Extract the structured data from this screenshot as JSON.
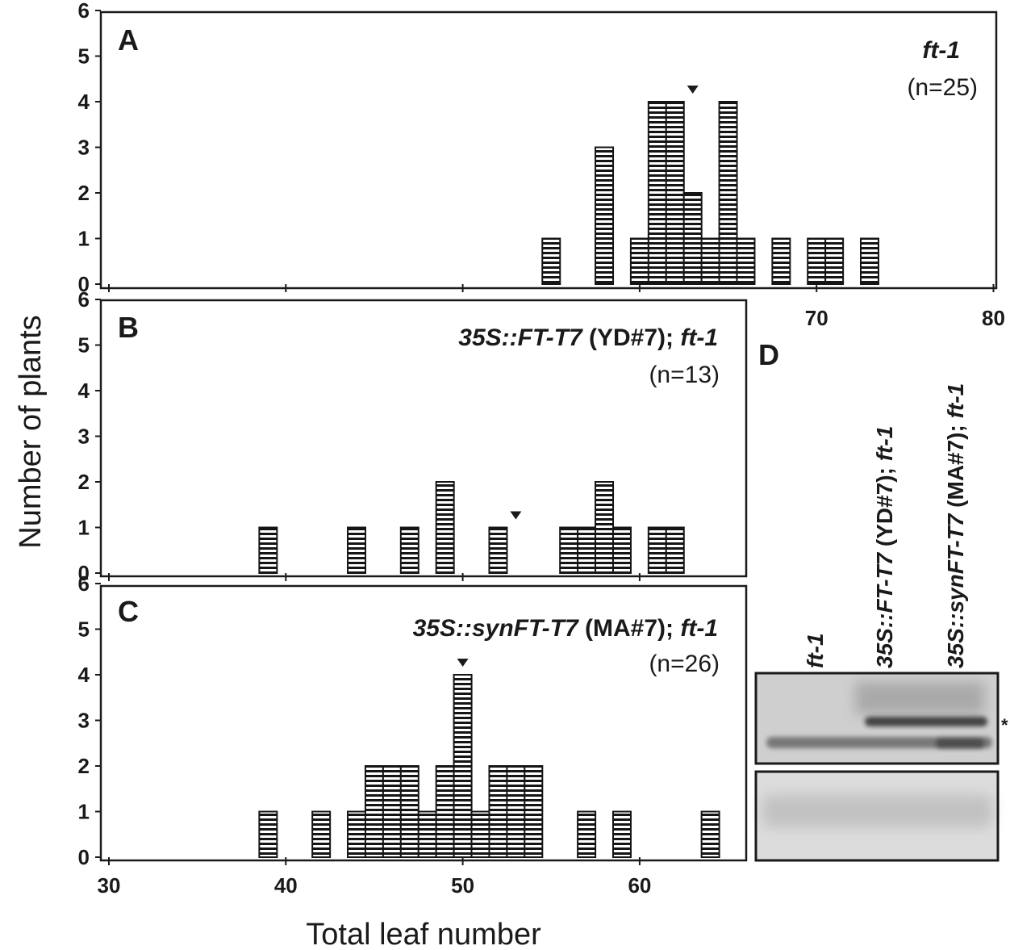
{
  "figure": {
    "ylabel": "Number of plants",
    "xlabel": "Total leaf number"
  },
  "chart_data": [
    {
      "panel": "A",
      "type": "bar",
      "label_bold": "ft-1",
      "label_normal": "",
      "label_tail": "",
      "n_label": "(n=25)",
      "xlim": [
        30,
        80
      ],
      "ylim": [
        0,
        6
      ],
      "x_ticks": [
        30,
        40,
        50,
        60,
        70,
        80
      ],
      "x_tick_labels_visible": [
        "70",
        "80"
      ],
      "y_ticks": [
        "0",
        "1",
        "2",
        "3",
        "4",
        "5",
        "6"
      ],
      "arrow_x": 63,
      "bins": [
        {
          "x": 55,
          "count": 1
        },
        {
          "x": 58,
          "count": 3
        },
        {
          "x": 60,
          "count": 1
        },
        {
          "x": 61,
          "count": 4
        },
        {
          "x": 62,
          "count": 4
        },
        {
          "x": 63,
          "count": 2
        },
        {
          "x": 64,
          "count": 1
        },
        {
          "x": 65,
          "count": 4
        },
        {
          "x": 66,
          "count": 1
        },
        {
          "x": 68,
          "count": 1
        },
        {
          "x": 70,
          "count": 1
        },
        {
          "x": 71,
          "count": 1
        },
        {
          "x": 73,
          "count": 1
        }
      ]
    },
    {
      "panel": "B",
      "type": "bar",
      "label_bold": "35S::FT-T7",
      "label_normal": " (YD#7); ",
      "label_tail": "ft-1",
      "n_label": "(n=13)",
      "xlim": [
        30,
        66
      ],
      "ylim": [
        0,
        6
      ],
      "x_ticks": [
        30,
        40,
        50,
        60
      ],
      "x_tick_labels_visible": [],
      "y_ticks": [
        "0",
        "1",
        "2",
        "3",
        "4",
        "5",
        "6"
      ],
      "arrow_x": 53,
      "bins": [
        {
          "x": 39,
          "count": 1
        },
        {
          "x": 44,
          "count": 1
        },
        {
          "x": 47,
          "count": 1
        },
        {
          "x": 49,
          "count": 2
        },
        {
          "x": 52,
          "count": 1
        },
        {
          "x": 56,
          "count": 1
        },
        {
          "x": 57,
          "count": 1
        },
        {
          "x": 58,
          "count": 2
        },
        {
          "x": 59,
          "count": 1
        },
        {
          "x": 61,
          "count": 1
        },
        {
          "x": 62,
          "count": 1
        }
      ]
    },
    {
      "panel": "C",
      "type": "bar",
      "label_bold": "35S::synFT-T7",
      "label_normal": " (MA#7); ",
      "label_tail": "ft-1",
      "n_label": "(n=26)",
      "xlim": [
        30,
        66
      ],
      "ylim": [
        0,
        6
      ],
      "x_ticks": [
        30,
        40,
        50,
        60
      ],
      "x_tick_labels_visible": [
        "30",
        "40",
        "50",
        "60"
      ],
      "y_ticks": [
        "0",
        "1",
        "2",
        "3",
        "4",
        "5",
        "6"
      ],
      "arrow_x": 50,
      "bins": [
        {
          "x": 39,
          "count": 1
        },
        {
          "x": 42,
          "count": 1
        },
        {
          "x": 44,
          "count": 1
        },
        {
          "x": 45,
          "count": 2
        },
        {
          "x": 46,
          "count": 2
        },
        {
          "x": 47,
          "count": 2
        },
        {
          "x": 48,
          "count": 1
        },
        {
          "x": 49,
          "count": 2
        },
        {
          "x": 50,
          "count": 4
        },
        {
          "x": 51,
          "count": 1
        },
        {
          "x": 52,
          "count": 2
        },
        {
          "x": 53,
          "count": 2
        },
        {
          "x": 54,
          "count": 2
        },
        {
          "x": 57,
          "count": 1
        },
        {
          "x": 59,
          "count": 1
        },
        {
          "x": 64,
          "count": 1
        }
      ]
    }
  ],
  "blot": {
    "panel": "D",
    "lanes": [
      {
        "bold": "ft-1",
        "normal": "",
        "tail": ""
      },
      {
        "bold": "35S::FT-T7",
        "normal": " (YD#7); ",
        "tail": "ft-1"
      },
      {
        "bold": "35S::synFT-T7",
        "normal": " (MA#7); ",
        "tail": "ft-1"
      }
    ],
    "band_marker": "*"
  }
}
